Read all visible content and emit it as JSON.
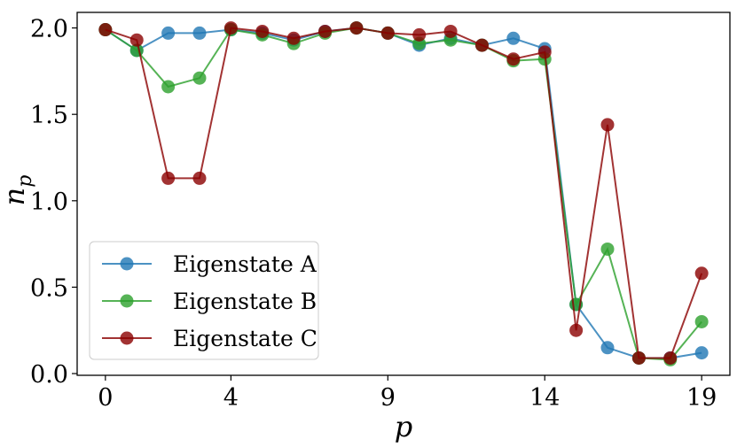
{
  "chart_data": {
    "type": "line",
    "title": "",
    "xlabel": "p",
    "ylabel": "n",
    "ylabel_subscript": "p",
    "xlim": [
      -0.9,
      19.9
    ],
    "ylim": [
      -0.01,
      2.09
    ],
    "xticks": [
      0,
      4,
      9,
      14,
      19
    ],
    "xtick_labels": [
      "0",
      "4",
      "9",
      "14",
      "19"
    ],
    "yticks": [
      0.0,
      0.5,
      1.0,
      1.5,
      2.0
    ],
    "ytick_labels": [
      "0.0",
      "0.5",
      "1.0",
      "1.5",
      "2.0"
    ],
    "grid": false,
    "legend_position": "lower-left",
    "x": [
      0,
      1,
      2,
      3,
      4,
      5,
      6,
      7,
      8,
      9,
      10,
      11,
      12,
      13,
      14,
      15,
      16,
      17,
      18,
      19
    ],
    "series": [
      {
        "name": "Eigenstate A",
        "color": "#1f77b4",
        "values": [
          1.99,
          1.87,
          1.97,
          1.97,
          1.99,
          1.97,
          1.93,
          1.98,
          2.0,
          1.97,
          1.9,
          1.94,
          1.9,
          1.94,
          1.88,
          0.4,
          0.15,
          0.09,
          0.09,
          0.12
        ]
      },
      {
        "name": "Eigenstate B",
        "color": "#2ca02c",
        "values": [
          1.99,
          1.87,
          1.66,
          1.71,
          1.99,
          1.96,
          1.91,
          1.97,
          2.0,
          1.97,
          1.91,
          1.93,
          1.9,
          1.81,
          1.82,
          0.4,
          0.72,
          0.09,
          0.08,
          0.3
        ]
      },
      {
        "name": "Eigenstate C",
        "color": "#8b0000",
        "values": [
          1.99,
          1.93,
          1.13,
          1.13,
          2.0,
          1.98,
          1.94,
          1.98,
          2.0,
          1.97,
          1.96,
          1.98,
          1.9,
          1.82,
          1.86,
          0.25,
          1.44,
          0.09,
          0.09,
          0.58
        ]
      }
    ]
  }
}
